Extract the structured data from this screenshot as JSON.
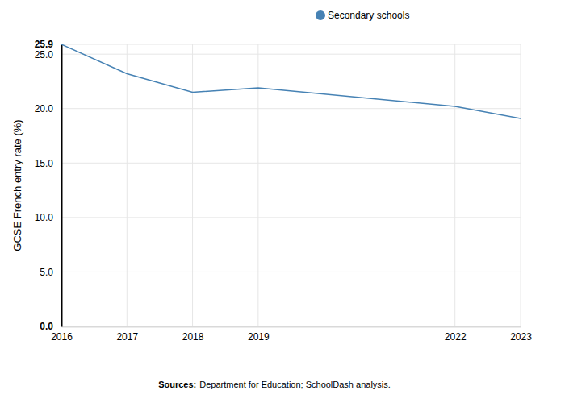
{
  "chart_data": {
    "type": "line",
    "y_label": "GCSE French entry rate (%)",
    "x": [
      2016,
      2017,
      2018,
      2019,
      2022,
      2023
    ],
    "series": [
      {
        "name": "Secondary schools",
        "color": "#4682b4",
        "values": [
          25.9,
          23.2,
          21.5,
          21.9,
          20.2,
          19.1
        ]
      }
    ],
    "xlim": [
      2016,
      2023
    ],
    "xticks": [
      2016,
      2017,
      2018,
      2019,
      2022,
      2023
    ],
    "ylim": [
      0,
      25.9
    ],
    "yticks": [
      {
        "value": 0,
        "label": "0.0"
      },
      {
        "value": 5,
        "label": "5.0"
      },
      {
        "value": 10,
        "label": "10.0"
      },
      {
        "value": 15,
        "label": "15.0"
      },
      {
        "value": 20,
        "label": "20.0"
      },
      {
        "value": 25,
        "label": "25.0"
      },
      25.9
    ],
    "grid": true,
    "legend": "top",
    "source": {
      "label": "Sources:",
      "text": "Department for Education; SchoolDash analysis."
    }
  }
}
